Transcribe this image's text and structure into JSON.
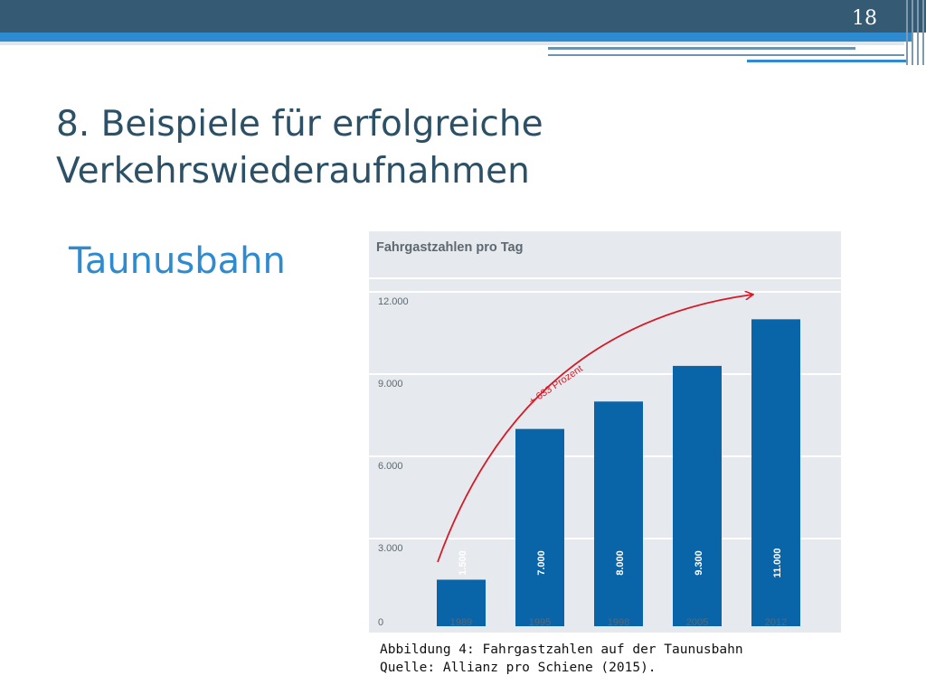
{
  "slide": {
    "page_number": "18",
    "title_line1": "8. Beispiele für erfolgreiche",
    "title_line2": "Verkehrswiederaufnahmen",
    "subtitle": "Taunusbahn",
    "caption_line1": "Abbildung 4: Fahrgastzahlen auf der Taunusbahn",
    "caption_line2": "Quelle: Allianz pro Schiene (2015)."
  },
  "colors": {
    "header_dark": "#355a73",
    "header_accent": "#2f8bd0",
    "bar": "#0a64a8",
    "arrow": "#d41b27",
    "panel": "#e6eaee"
  },
  "chart_data": {
    "type": "bar",
    "title": "Fahrgastzahlen pro Tag",
    "categories": [
      "1989",
      "1995",
      "1998",
      "2005",
      "2012"
    ],
    "values": [
      1500,
      7000,
      8000,
      9300,
      11000
    ],
    "value_labels": [
      "1.500",
      "7.000",
      "8.000",
      "9.300",
      "11.000"
    ],
    "ylim": [
      0,
      12000
    ],
    "yticks": [
      0,
      3000,
      6000,
      9000,
      12000
    ],
    "ytick_labels": [
      "0",
      "3.000",
      "6.000",
      "9.000",
      "12.000"
    ],
    "grid": true,
    "annotation": "+ 633 Prozent"
  }
}
